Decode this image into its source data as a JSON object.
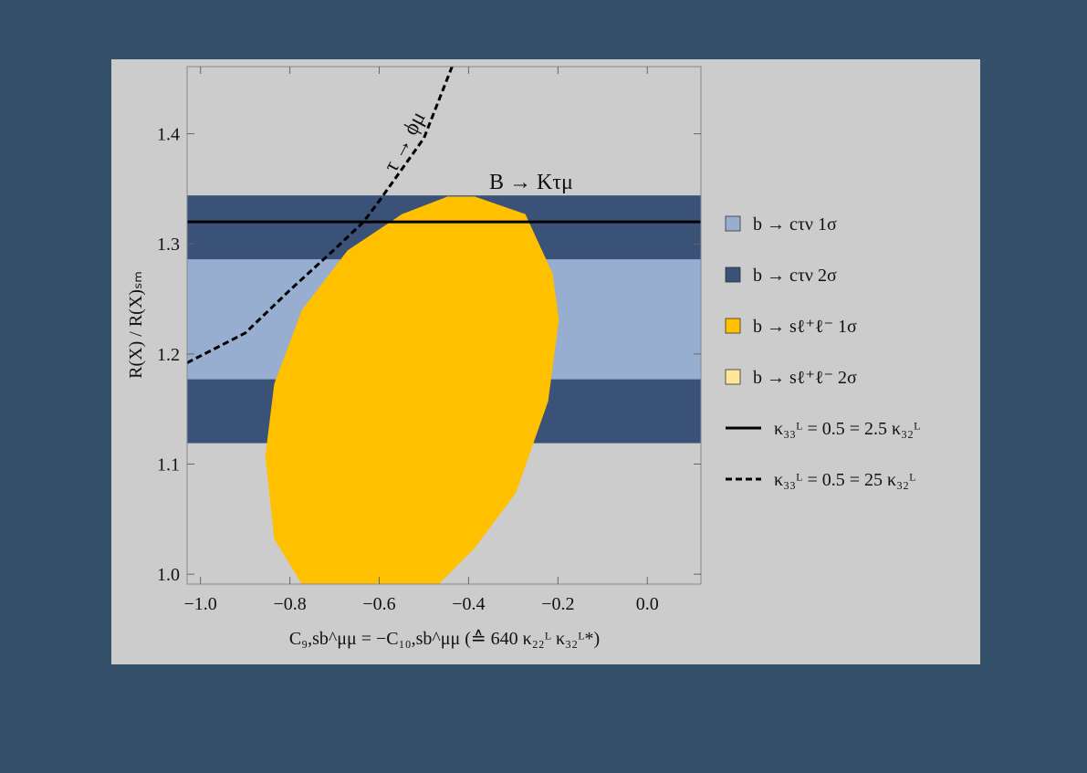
{
  "chart_data": {
    "type": "region",
    "xlabel": "C₉,sb^μμ = −C₁₀,sb^μμ (≙ 640 κ₂₂ᴸ κ₃₂ᴸ*)",
    "ylabel": "R(X) / R(X)ₛₘ",
    "xlim": [
      -1.03,
      0.12
    ],
    "ylim": [
      0.991,
      1.461
    ],
    "xticks": [
      {
        "value": -1.0,
        "label": "−1.0"
      },
      {
        "value": -0.8,
        "label": "−0.8"
      },
      {
        "value": -0.6,
        "label": "−0.6"
      },
      {
        "value": -0.4,
        "label": "−0.4"
      },
      {
        "value": -0.2,
        "label": "−0.2"
      },
      {
        "value": 0,
        "label": "0.0"
      }
    ],
    "yticks": [
      {
        "value": 1.0,
        "label": "1.0"
      },
      1.1,
      1.2,
      1.3,
      1.4
    ],
    "annotations": [
      {
        "text": "B → Kτμ",
        "x": -0.26,
        "y": 1.35
      },
      {
        "text": "τ → ϕμ",
        "x": -0.53,
        "y": 1.39,
        "rotate": -62
      }
    ],
    "series": [
      {
        "name": "b → cτν 1σ",
        "color": "#98aed0",
        "ymin": 1.177,
        "ymax": 1.286
      },
      {
        "name": "b → cτν 2σ",
        "color": "#3a5278",
        "ymin": 1.119,
        "ymax": 1.344
      },
      {
        "name": "b → sℓ⁺ℓ⁻ 1σ",
        "color": "#ffc000",
        "x": [
          -0.386,
          -0.273,
          -0.212,
          -0.198,
          -0.222,
          -0.294,
          -0.386,
          -0.467,
          -0.773,
          -0.835,
          -0.855,
          -0.835,
          -0.773,
          -0.671,
          -0.549,
          -0.447
        ],
        "y": [
          1.343,
          1.327,
          1.273,
          1.231,
          1.157,
          1.074,
          1.024,
          0.991,
          0.991,
          1.032,
          1.107,
          1.173,
          1.24,
          1.294,
          1.327,
          1.343
        ]
      },
      {
        "name": "b → sℓ⁺ℓ⁻ 2σ",
        "color": "#ffe699"
      },
      {
        "name": "κ₃₃ᴸ = 0.5 = 2.5 κ₃₂ᴸ",
        "color": "#000000",
        "style": "solid",
        "x": [
          -1.03,
          0.12
        ],
        "y": [
          1.32,
          1.32
        ]
      },
      {
        "name": "κ₃₃ᴸ = 0.5 = 25 κ₃₂ᴸ",
        "color": "#000000",
        "style": "dashed",
        "x": [
          -1.03,
          -0.9,
          -0.8,
          -0.7,
          -0.635,
          -0.6,
          -0.5,
          -0.437
        ],
        "y": [
          1.192,
          1.219,
          1.258,
          1.295,
          1.32,
          1.339,
          1.396,
          1.461
        ]
      }
    ]
  }
}
